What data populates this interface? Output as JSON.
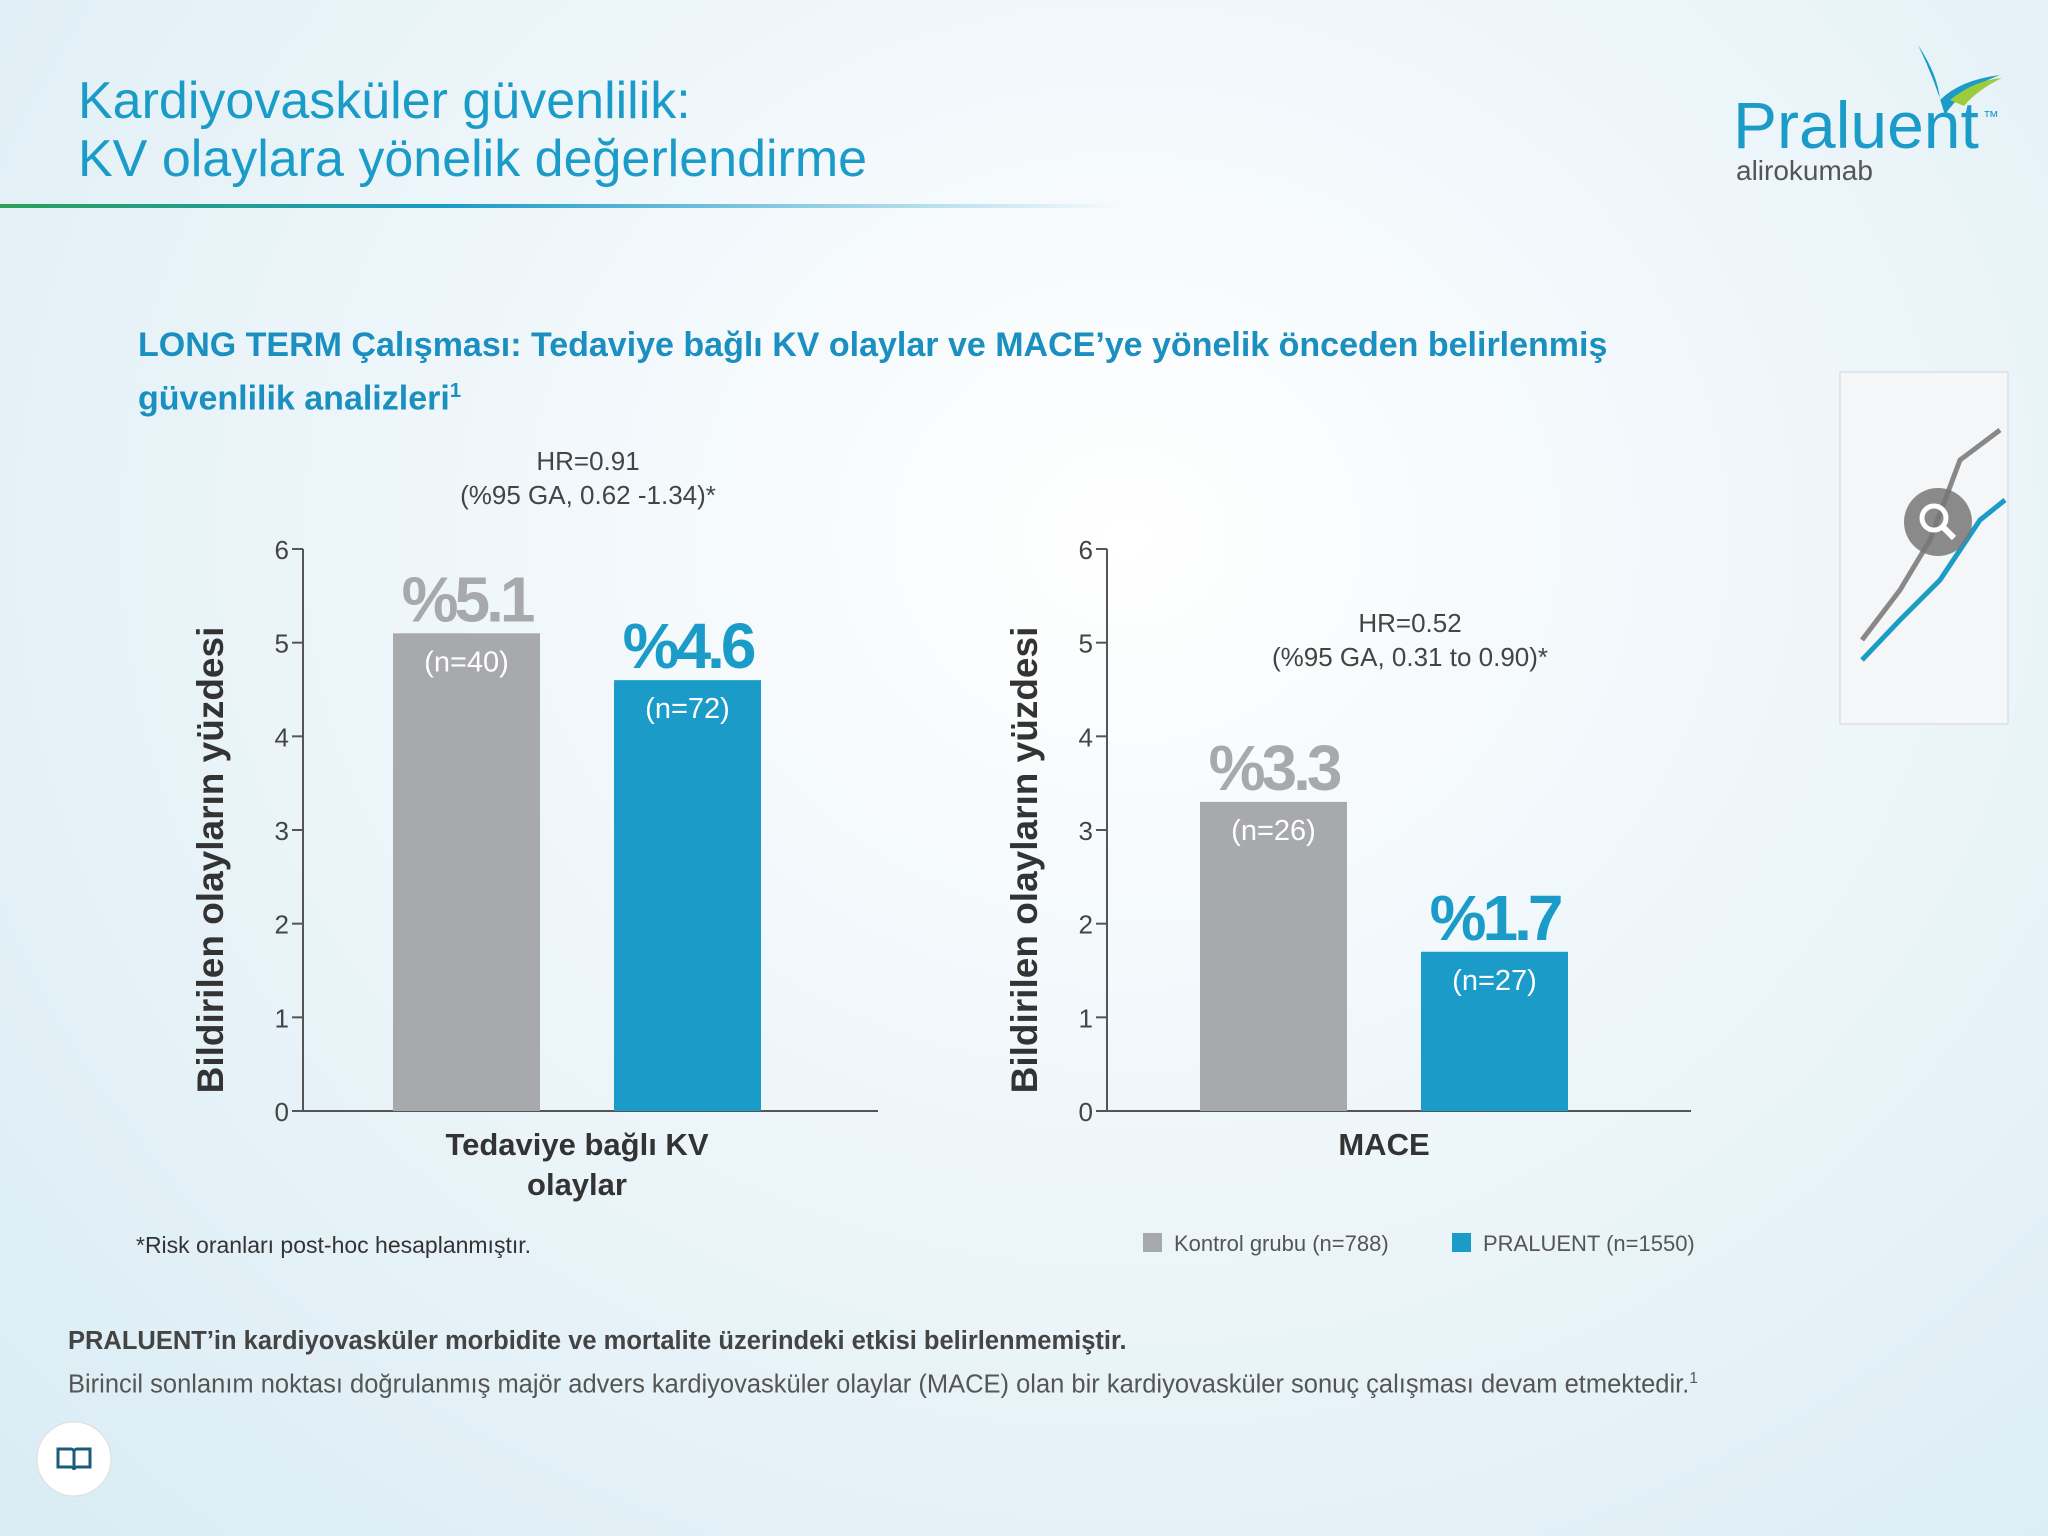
{
  "header": {
    "title_lines": [
      "Kardiyovasküler güvenlilik:",
      "KV olaylara yönelik değerlendirme"
    ],
    "brand": "Praluent",
    "trademark": "™",
    "generic": "alirokumab"
  },
  "subtitle": "LONG TERM Çalışması: Tedaviye bağlı KV olaylar ve MACE’ye yönelik önceden belirlenmiş güvenlilik analizleri",
  "subtitle_ref": "1",
  "chart_data": [
    {
      "type": "bar",
      "y_label": "Bildirilen olayların yüzdesi",
      "annotation": [
        "HR=0.91",
        "(%95 GA, 0.62 -1.34)*"
      ],
      "categories": [
        "Tedaviye bağlı KV olaylar"
      ],
      "series": [
        {
          "color": "#a7a9ac",
          "values": [
            5.1
          ],
          "value_labels": [
            "%5.1"
          ],
          "n_labels": [
            "(n=40)"
          ]
        },
        {
          "color": "#1b9cc8",
          "values": [
            4.6
          ],
          "value_labels": [
            "%4.6"
          ],
          "n_labels": [
            "(n=72)"
          ]
        }
      ],
      "ylim": [
        0,
        6
      ],
      "yticks": [
        0,
        1,
        2,
        3,
        4,
        5,
        6
      ]
    },
    {
      "type": "bar",
      "y_label": "Bildirilen olayların yüzdesi",
      "annotation": [
        "HR=0.52",
        "(%95 GA, 0.31 to 0.90)*"
      ],
      "categories": [
        "MACE"
      ],
      "series": [
        {
          "name": "Kontrol grubu (n=788)",
          "color": "#a7a9ac",
          "values": [
            3.3
          ],
          "value_labels": [
            "%3.3"
          ],
          "n_labels": [
            "(n=26)"
          ]
        },
        {
          "name": "PRALUENT (n=1550)",
          "color": "#1b9cc8",
          "values": [
            1.7
          ],
          "value_labels": [
            "%1.7"
          ],
          "n_labels": [
            "(n=27)"
          ]
        }
      ],
      "ylim": [
        0,
        6
      ],
      "yticks": [
        0,
        1,
        2,
        3,
        4,
        5,
        6
      ],
      "legend": "bottom-right"
    }
  ],
  "footnote": "*Risk oranları post-hoc hesaplanmıştır.",
  "bottom": {
    "bold": "PRALUENT’in kardiyovasküler morbidite ve mortalite üzerindeki etkisi belirlenmemiştir.",
    "text": "Birincil sonlanım noktası doğrulanmış majör advers kardiyovasküler olaylar (MACE) olan bir kardiyovasküler sonuç çalışması devam etmektedir.",
    "ref": "1"
  }
}
